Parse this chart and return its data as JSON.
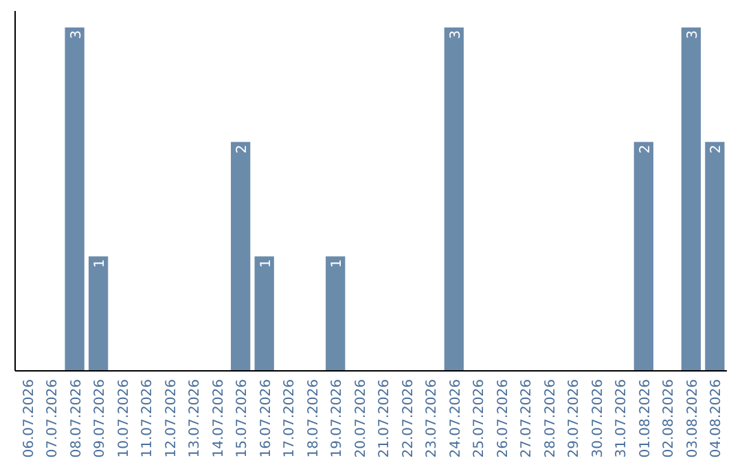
{
  "chart_data": {
    "type": "bar",
    "categories": [
      "06.07.2026",
      "07.07.2026",
      "08.07.2026",
      "09.07.2026",
      "10.07.2026",
      "11.07.2026",
      "12.07.2026",
      "13.07.2026",
      "14.07.2026",
      "15.07.2026",
      "16.07.2026",
      "17.07.2026",
      "18.07.2026",
      "19.07.2026",
      "20.07.2026",
      "21.07.2026",
      "22.07.2026",
      "23.07.2026",
      "24.07.2026",
      "25.07.2026",
      "26.07.2026",
      "27.07.2026",
      "28.07.2026",
      "29.07.2026",
      "30.07.2026",
      "31.07.2026",
      "01.08.2026",
      "02.08.2026",
      "03.08.2026",
      "04.08.2026"
    ],
    "values": [
      0,
      0,
      3,
      1,
      0,
      0,
      0,
      0,
      0,
      2,
      1,
      0,
      0,
      1,
      0,
      0,
      0,
      0,
      3,
      0,
      0,
      0,
      0,
      0,
      0,
      0,
      2,
      0,
      3,
      2
    ],
    "value_labels": [
      null,
      null,
      "3",
      "1",
      null,
      null,
      null,
      null,
      null,
      "2",
      "1",
      null,
      null,
      "1",
      null,
      null,
      null,
      null,
      "3",
      null,
      null,
      null,
      null,
      null,
      null,
      null,
      "2",
      null,
      "3",
      "2"
    ],
    "color": "#6b8bab"
  }
}
